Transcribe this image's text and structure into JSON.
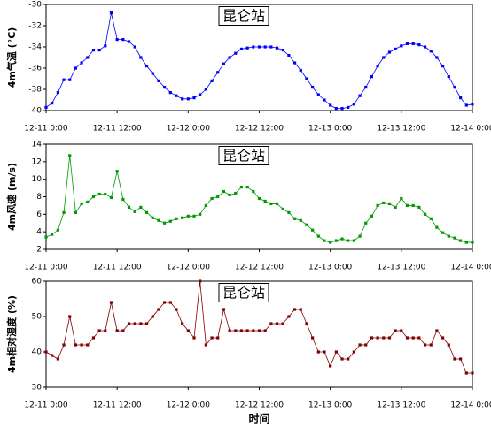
{
  "chart_data": [
    {
      "type": "line",
      "title": "昆仑站",
      "ylabel": "4m气温 (°C)",
      "color": "#0000ff",
      "x": [
        0,
        1,
        2,
        3,
        4,
        5,
        6,
        7,
        8,
        9,
        10,
        11,
        12,
        13,
        14,
        15,
        16,
        17,
        18,
        19,
        20,
        21,
        22,
        23,
        24,
        25,
        26,
        27,
        28,
        29,
        30,
        31,
        32,
        33,
        34,
        35,
        36,
        37,
        38,
        39,
        40,
        41,
        42,
        43,
        44,
        45,
        46,
        47,
        48,
        49,
        50,
        51,
        52,
        53,
        54,
        55,
        56,
        57,
        58,
        59,
        60,
        61,
        62,
        63,
        64,
        65,
        66,
        67,
        68,
        69,
        70,
        71,
        72
      ],
      "values": [
        -39.7,
        -39.3,
        -38.3,
        -37.1,
        -37.1,
        -36.0,
        -35.5,
        -35.0,
        -34.3,
        -34.3,
        -33.9,
        -30.8,
        -33.3,
        -33.3,
        -33.5,
        -34.0,
        -35.0,
        -35.8,
        -36.5,
        -37.2,
        -37.8,
        -38.3,
        -38.6,
        -38.9,
        -38.9,
        -38.8,
        -38.5,
        -38.0,
        -37.2,
        -36.4,
        -35.6,
        -35.0,
        -34.6,
        -34.2,
        -34.1,
        -34.0,
        -34.0,
        -34.0,
        -34.0,
        -34.1,
        -34.3,
        -34.8,
        -35.5,
        -36.2,
        -37.0,
        -37.8,
        -38.5,
        -39.0,
        -39.5,
        -39.8,
        -39.8,
        -39.7,
        -39.4,
        -38.6,
        -37.8,
        -36.8,
        -35.8,
        -35.0,
        -34.5,
        -34.2,
        -33.9,
        -33.7,
        -33.7,
        -33.8,
        -34.0,
        -34.4,
        -35.0,
        -35.8,
        -36.8,
        -37.8,
        -38.8,
        -39.5,
        -39.4
      ],
      "xlim": [
        0,
        72
      ],
      "xticks": [
        {
          "value": 0,
          "label": "12-11 0:00"
        },
        {
          "value": 12,
          "label": "12-11 12:00"
        },
        {
          "value": 24,
          "label": "12-12 0:00"
        },
        {
          "value": 36,
          "label": "12-12 12:00"
        },
        {
          "value": 48,
          "label": "12-13 0:00"
        },
        {
          "value": 60,
          "label": "12-13 12:00"
        },
        {
          "value": 72,
          "label": "12-14 0:00"
        }
      ],
      "ylim": [
        -40,
        -30
      ],
      "yticks": [
        -40,
        -38,
        -36,
        -34,
        -32,
        -30
      ]
    },
    {
      "type": "line",
      "title": "昆仑站",
      "ylabel": "4m风速 (m/s)",
      "color": "#009900",
      "x": [
        0,
        1,
        2,
        3,
        4,
        5,
        6,
        7,
        8,
        9,
        10,
        11,
        12,
        13,
        14,
        15,
        16,
        17,
        18,
        19,
        20,
        21,
        22,
        23,
        24,
        25,
        26,
        27,
        28,
        29,
        30,
        31,
        32,
        33,
        34,
        35,
        36,
        37,
        38,
        39,
        40,
        41,
        42,
        43,
        44,
        45,
        46,
        47,
        48,
        49,
        50,
        51,
        52,
        53,
        54,
        55,
        56,
        57,
        58,
        59,
        60,
        61,
        62,
        63,
        64,
        65,
        66,
        67,
        68,
        69,
        70,
        71,
        72
      ],
      "values": [
        3.4,
        3.7,
        4.2,
        6.2,
        12.7,
        6.2,
        7.2,
        7.4,
        8.0,
        8.3,
        8.3,
        7.9,
        10.9,
        7.7,
        6.8,
        6.3,
        6.8,
        6.2,
        5.6,
        5.3,
        5.0,
        5.2,
        5.5,
        5.6,
        5.8,
        5.8,
        6.0,
        7.0,
        7.8,
        8.0,
        8.6,
        8.2,
        8.4,
        9.1,
        9.1,
        8.6,
        7.8,
        7.5,
        7.2,
        7.2,
        6.6,
        6.2,
        5.5,
        5.3,
        4.8,
        4.2,
        3.5,
        3.0,
        2.8,
        3.0,
        3.2,
        3.0,
        3.0,
        3.5,
        5.0,
        5.8,
        7.0,
        7.3,
        7.2,
        6.8,
        7.8,
        7.0,
        7.0,
        6.8,
        6.0,
        5.5,
        4.5,
        3.9,
        3.5,
        3.3,
        3.0,
        2.8,
        2.8
      ],
      "xlim": [
        0,
        72
      ],
      "xticks": [
        {
          "value": 0,
          "label": "12-11 0:00"
        },
        {
          "value": 12,
          "label": "12-11 12:00"
        },
        {
          "value": 24,
          "label": "12-12 0:00"
        },
        {
          "value": 36,
          "label": "12-12 12:00"
        },
        {
          "value": 48,
          "label": "12-13 0:00"
        },
        {
          "value": 60,
          "label": "12-13 12:00"
        },
        {
          "value": 72,
          "label": "12-14 0:00"
        }
      ],
      "ylim": [
        2,
        14
      ],
      "yticks": [
        2,
        4,
        6,
        8,
        10,
        12,
        14
      ]
    },
    {
      "type": "line",
      "title": "昆仑站",
      "ylabel": "4m相对湿度 (%)",
      "xlabel": "时间",
      "color": "#800000",
      "x": [
        0,
        1,
        2,
        3,
        4,
        5,
        6,
        7,
        8,
        9,
        10,
        11,
        12,
        13,
        14,
        15,
        16,
        17,
        18,
        19,
        20,
        21,
        22,
        23,
        24,
        25,
        26,
        27,
        28,
        29,
        30,
        31,
        32,
        33,
        34,
        35,
        36,
        37,
        38,
        39,
        40,
        41,
        42,
        43,
        44,
        45,
        46,
        47,
        48,
        49,
        50,
        51,
        52,
        53,
        54,
        55,
        56,
        57,
        58,
        59,
        60,
        61,
        62,
        63,
        64,
        65,
        66,
        67,
        68,
        69,
        70,
        71,
        72
      ],
      "values": [
        40,
        39,
        38,
        42,
        50,
        42,
        42,
        42,
        44,
        46,
        46,
        54,
        46,
        46,
        48,
        48,
        48,
        48,
        50,
        52,
        54,
        54,
        52,
        48,
        46,
        44,
        60,
        42,
        44,
        44,
        52,
        46,
        46,
        46,
        46,
        46,
        46,
        46,
        48,
        48,
        48,
        50,
        52,
        52,
        48,
        44,
        40,
        40,
        36,
        40,
        38,
        38,
        40,
        42,
        42,
        44,
        44,
        44,
        44,
        46,
        46,
        44,
        44,
        44,
        42,
        42,
        46,
        44,
        42,
        38,
        38,
        34,
        34
      ],
      "xlim": [
        0,
        72
      ],
      "xticks": [
        {
          "value": 0,
          "label": "12-11 0:00"
        },
        {
          "value": 12,
          "label": "12-11 12:00"
        },
        {
          "value": 24,
          "label": "12-12 0:00"
        },
        {
          "value": 36,
          "label": "12-12 12:00"
        },
        {
          "value": 48,
          "label": "12-13 0:00"
        },
        {
          "value": 60,
          "label": "12-13 12:00"
        },
        {
          "value": 72,
          "label": "12-14 0:00"
        }
      ],
      "ylim": [
        30,
        60
      ],
      "yticks": [
        30,
        40,
        50,
        60
      ]
    }
  ]
}
